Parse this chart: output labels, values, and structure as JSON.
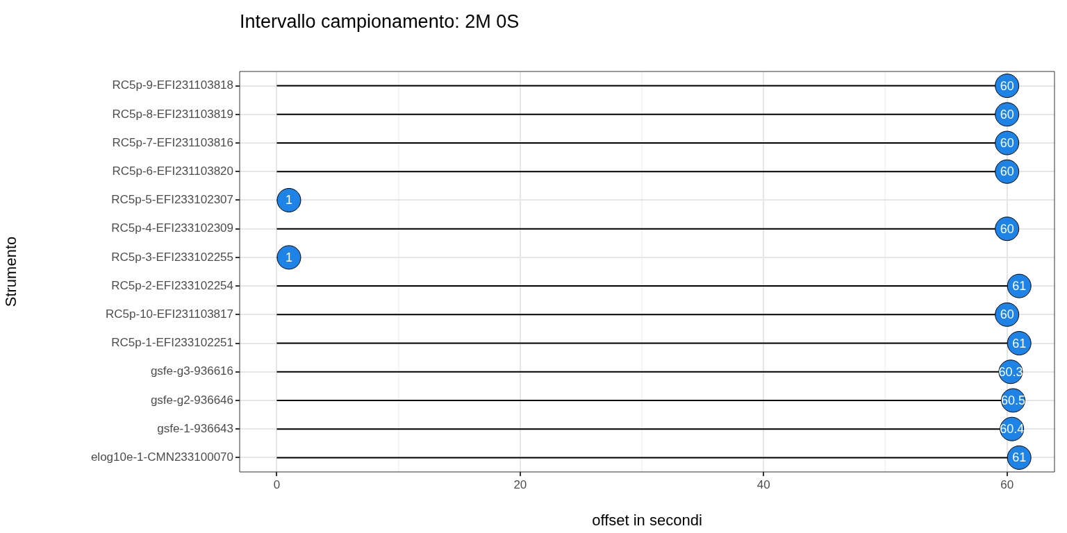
{
  "chart_data": {
    "type": "lollipop",
    "orientation": "horizontal",
    "title": "Intervallo campionamento: 2M 0S",
    "xlabel": "offset in secondi",
    "ylabel": "Strumento",
    "categories": [
      "RC5p-9-EFI231103818",
      "RC5p-8-EFI231103819",
      "RC5p-7-EFI231103816",
      "RC5p-6-EFI231103820",
      "RC5p-5-EFI233102307",
      "RC5p-4-EFI233102309",
      "RC5p-3-EFI233102255",
      "RC5p-2-EFI233102254",
      "RC5p-10-EFI231103817",
      "RC5p-1-EFI233102251",
      "gsfe-g3-936616",
      "gsfe-g2-936646",
      "gsfe-1-936643",
      "elog10e-1-CMN233100070"
    ],
    "values": [
      60,
      60,
      60,
      60,
      1,
      60,
      1,
      61,
      60,
      61,
      60.3,
      60.5,
      60.4,
      61
    ],
    "color": "#1e83e6",
    "marker": "circle",
    "data_labels": true,
    "grid": true,
    "legend": false,
    "xlim": [
      -3.05,
      63.9
    ],
    "xticks": [
      0,
      {
        "value": 10,
        "label": null
      },
      20,
      {
        "value": 30,
        "label": null
      },
      40,
      {
        "value": 50,
        "label": null
      },
      60
    ]
  }
}
